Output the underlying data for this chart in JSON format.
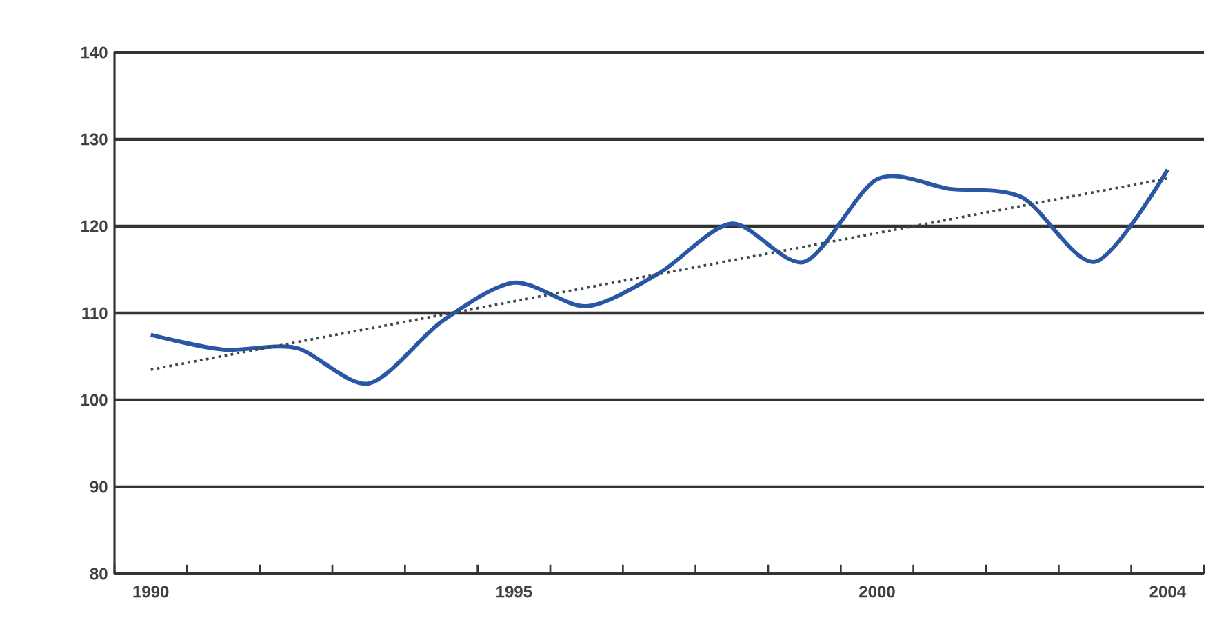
{
  "chart_data": {
    "type": "line",
    "categories": [
      "1990",
      null,
      null,
      null,
      null,
      "1995",
      null,
      null,
      null,
      null,
      "2000",
      null,
      null,
      null,
      "2004"
    ],
    "series": [
      {
        "color": "#2a57a5",
        "values": [
          107.5,
          105.8,
          106.0,
          101.9,
          109.0,
          113.5,
          110.8,
          114.6,
          120.3,
          115.9,
          125.4,
          124.3,
          123.3,
          115.9,
          126.5
        ]
      },
      {
        "color": "#3a4a4a",
        "line_style": "dotted",
        "values": [
          103.5,
          null,
          null,
          null,
          null,
          null,
          null,
          null,
          null,
          null,
          null,
          null,
          null,
          null,
          125.5
        ]
      }
    ],
    "ylim": [
      80,
      140
    ],
    "yticks": [
      80,
      90,
      100,
      110,
      120,
      130,
      140
    ],
    "grid": "y",
    "marker": "none",
    "line_style": "solid"
  }
}
